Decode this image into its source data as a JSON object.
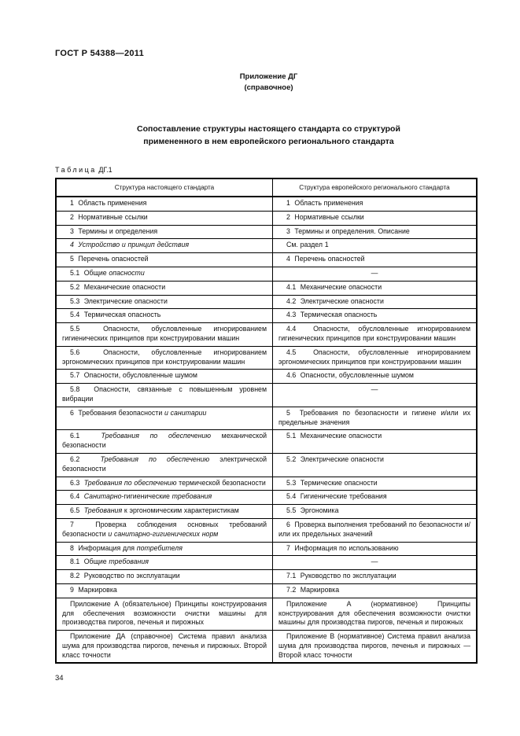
{
  "page": {
    "doc_code": "ГОСТ Р 54388—2011",
    "appendix": {
      "name": "Приложение ДГ",
      "type": "(справочное)"
    },
    "title_lines": [
      "Сопоставление структуры настоящего стандарта со структурой",
      "примененного в нем европейского регионального стандарта"
    ],
    "table_label": {
      "word": "Таблица",
      "number": "ДГ.1"
    },
    "page_number": "34"
  },
  "table": {
    "headers": [
      "Структура настоящего стандарта",
      "Структура европейского регионального стандарта"
    ],
    "rows": [
      {
        "left": [
          {
            "text": "1  Область применения",
            "italic": false
          }
        ],
        "right": [
          {
            "text": "1  Область применения",
            "italic": false
          }
        ]
      },
      {
        "left": [
          {
            "text": "2  Нормативные ссылки",
            "italic": false
          }
        ],
        "right": [
          {
            "text": "2  Нормативные ссылки",
            "italic": false
          }
        ]
      },
      {
        "left": [
          {
            "text": "3  Термины и определения",
            "italic": false
          }
        ],
        "right": [
          {
            "text": "3  Термины и определения. Описание",
            "italic": false
          }
        ]
      },
      {
        "left": [
          {
            "text": "4  Устройство и принцип действия",
            "italic": true
          }
        ],
        "right": [
          {
            "text": "См. раздел 1",
            "italic": false
          }
        ]
      },
      {
        "left": [
          {
            "text": "5  Перечень опасностей",
            "italic": false
          }
        ],
        "right": [
          {
            "text": "4  Перечень опасностей",
            "italic": false
          }
        ]
      },
      {
        "left": [
          {
            "text": "5.1  Общие ",
            "italic": false
          },
          {
            "text": "опасности",
            "italic": true
          }
        ],
        "right": [
          {
            "text": "—",
            "italic": false
          }
        ]
      },
      {
        "left": [
          {
            "text": "5.2  Механические опасности",
            "italic": false
          }
        ],
        "right": [
          {
            "text": "4.1  Механические опасности",
            "italic": false
          }
        ]
      },
      {
        "left": [
          {
            "text": "5.3  Электрические опасности",
            "italic": false
          }
        ],
        "right": [
          {
            "text": "4.2  Электрические опасности",
            "italic": false
          }
        ]
      },
      {
        "left": [
          {
            "text": "5.4  Термическая опасность",
            "italic": false
          }
        ],
        "right": [
          {
            "text": "4.3  Термическая опасность",
            "italic": false
          }
        ]
      },
      {
        "left": [
          {
            "text": "5.5  Опасности, обусловленные игнорированием гигиенических принципов при конструировании машин",
            "italic": false
          }
        ],
        "right": [
          {
            "text": "4.4  Опасности, обусловленные игнорированием гигиенических принципов при конструировании машин",
            "italic": false
          }
        ]
      },
      {
        "left": [
          {
            "text": "5.6  Опасности, обусловленные игнорированием эргономических принципов при конструировании машин",
            "italic": false
          }
        ],
        "right": [
          {
            "text": "4.5  Опасности, обусловленные игнорированием эргономических принципов при конструировании машин",
            "italic": false
          }
        ]
      },
      {
        "left": [
          {
            "text": "5.7  Опасности, обусловленные шумом",
            "italic": false
          }
        ],
        "right": [
          {
            "text": "4.6  Опасности, обусловленные шумом",
            "italic": false
          }
        ]
      },
      {
        "left": [
          {
            "text": "5.8  Опасности, связанные с повышенным уровнем вибрации",
            "italic": false
          }
        ],
        "right": [
          {
            "text": "—",
            "italic": false
          }
        ]
      },
      {
        "left": [
          {
            "text": "6  Требования безопасности ",
            "italic": false
          },
          {
            "text": "и санитарии",
            "italic": true
          }
        ],
        "right": [
          {
            "text": "5  Требования по безопасности и гигиене и/или их предельные значения",
            "italic": false
          }
        ]
      },
      {
        "left": [
          {
            "text": "6.1  ",
            "italic": false
          },
          {
            "text": "Требования по обеспечению",
            "italic": true
          },
          {
            "text": " механической безопасности",
            "italic": false
          }
        ],
        "right": [
          {
            "text": "5.1  Механические опасности",
            "italic": false
          }
        ]
      },
      {
        "left": [
          {
            "text": "6.2  ",
            "italic": false
          },
          {
            "text": "Требования по обеспечению",
            "italic": true
          },
          {
            "text": " электрической безопасности",
            "italic": false
          }
        ],
        "right": [
          {
            "text": "5.2  Электрические опасности",
            "italic": false
          }
        ]
      },
      {
        "left": [
          {
            "text": "6.3  ",
            "italic": false
          },
          {
            "text": "Требования по обеспечению",
            "italic": true
          },
          {
            "text": " термической безопасности",
            "italic": false
          }
        ],
        "right": [
          {
            "text": "5.3  Термические опасности",
            "italic": false
          }
        ]
      },
      {
        "left": [
          {
            "text": "6.4  ",
            "italic": false
          },
          {
            "text": "Санитарно",
            "italic": true
          },
          {
            "text": "-гигиенические ",
            "italic": false
          },
          {
            "text": "требования",
            "italic": true
          }
        ],
        "right": [
          {
            "text": "5.4  Гигиенические требования",
            "italic": false
          }
        ]
      },
      {
        "left": [
          {
            "text": "6.5  ",
            "italic": false
          },
          {
            "text": "Требования",
            "italic": true
          },
          {
            "text": " к эргономическим характеристикам",
            "italic": false
          }
        ],
        "right": [
          {
            "text": "5.5  Эргономика",
            "italic": false
          }
        ]
      },
      {
        "left": [
          {
            "text": "7  Проверка соблюдения основных требований безопасности ",
            "italic": false
          },
          {
            "text": "и санитарно-гигиенических норм",
            "italic": true
          }
        ],
        "right": [
          {
            "text": "6  Проверка выполнения требований по безопасности и/или их предельных значений",
            "italic": false
          }
        ]
      },
      {
        "left": [
          {
            "text": "8  Информация для ",
            "italic": false
          },
          {
            "text": "потребителя",
            "italic": true
          }
        ],
        "right": [
          {
            "text": "7  Информация по использованию",
            "italic": false
          }
        ]
      },
      {
        "left": [
          {
            "text": "8.1  Общие ",
            "italic": false
          },
          {
            "text": "требования",
            "italic": true
          }
        ],
        "right": [
          {
            "text": "—",
            "italic": false
          }
        ]
      },
      {
        "left": [
          {
            "text": "8.2  Руководство по эксплуатации",
            "italic": false
          }
        ],
        "right": [
          {
            "text": "7.1  Руководство по эксплуатации",
            "italic": false
          }
        ]
      },
      {
        "left": [
          {
            "text": "9  Маркировка",
            "italic": false
          }
        ],
        "right": [
          {
            "text": "7.2  Маркировка",
            "italic": false
          }
        ]
      },
      {
        "left": [
          {
            "text": "Приложение А (обязательное) Принципы конструирования для обеспечения возможности очистки машины для производства пирогов, печенья и пирожных",
            "italic": false
          }
        ],
        "right": [
          {
            "text": "Приложение А (нормативное) Принципы конструирования для обеспечения возможности очистки машины для производства пирогов, печенья и пирожных",
            "italic": false
          }
        ]
      },
      {
        "left": [
          {
            "text": "Приложение ДА (справочное) Система правил анализа шума для производства пирогов, печенья и пирожных. Второй класс точности",
            "italic": false
          }
        ],
        "right": [
          {
            "text": "Приложение В (нормативное) Система правил анализа шума для производства пирогов, печенья и пирожных — Второй класс точности",
            "italic": false
          }
        ]
      }
    ]
  }
}
